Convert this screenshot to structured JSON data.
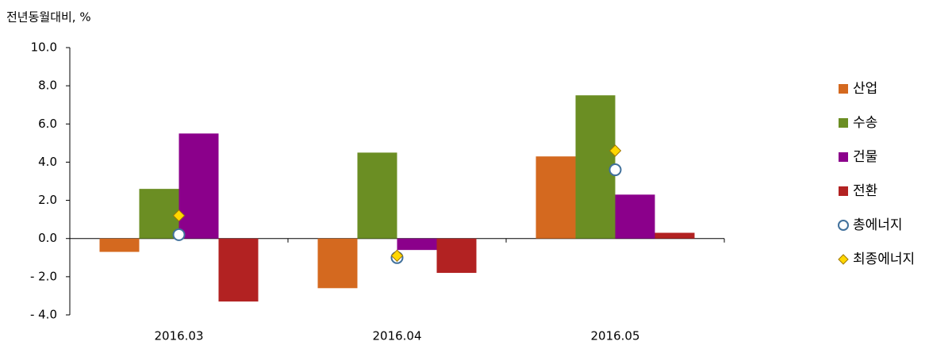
{
  "chart_data": {
    "type": "bar",
    "y_axis_label": "전년동월대비, %",
    "categories": [
      "2016.03",
      "2016.04",
      "2016.05"
    ],
    "series": [
      {
        "name": "산업",
        "type": "bar",
        "color": "#d4691f",
        "values": [
          -0.7,
          -2.6,
          4.3
        ]
      },
      {
        "name": "수송",
        "type": "bar",
        "color": "#6b8e23",
        "values": [
          2.6,
          4.5,
          7.5
        ]
      },
      {
        "name": "건물",
        "type": "bar",
        "color": "#8b008b",
        "values": [
          5.5,
          -0.6,
          2.3
        ]
      },
      {
        "name": "전환",
        "type": "bar",
        "color": "#b22222",
        "values": [
          -3.3,
          -1.8,
          0.3
        ]
      },
      {
        "name": "총에너지",
        "type": "scatter",
        "marker": "circle",
        "color": "#41719c",
        "values": [
          0.2,
          -1.0,
          3.6
        ]
      },
      {
        "name": "최종에너지",
        "type": "scatter",
        "marker": "diamond",
        "color": "#ffd700",
        "values": [
          1.2,
          -0.9,
          4.6
        ]
      }
    ],
    "ylim": [
      -4,
      10
    ],
    "yticks": [
      {
        "value": -4,
        "label": "- 4.0"
      },
      {
        "value": -2,
        "label": "- 2.0"
      },
      {
        "value": 0,
        "label": "0.0"
      },
      {
        "value": 2,
        "label": "2.0"
      },
      {
        "value": 4,
        "label": "4.0"
      },
      {
        "value": 6,
        "label": "6.0"
      },
      {
        "value": 8,
        "label": "8.0"
      },
      {
        "value": 10,
        "label": "10.0"
      }
    ],
    "grid": false,
    "legend": "right"
  }
}
